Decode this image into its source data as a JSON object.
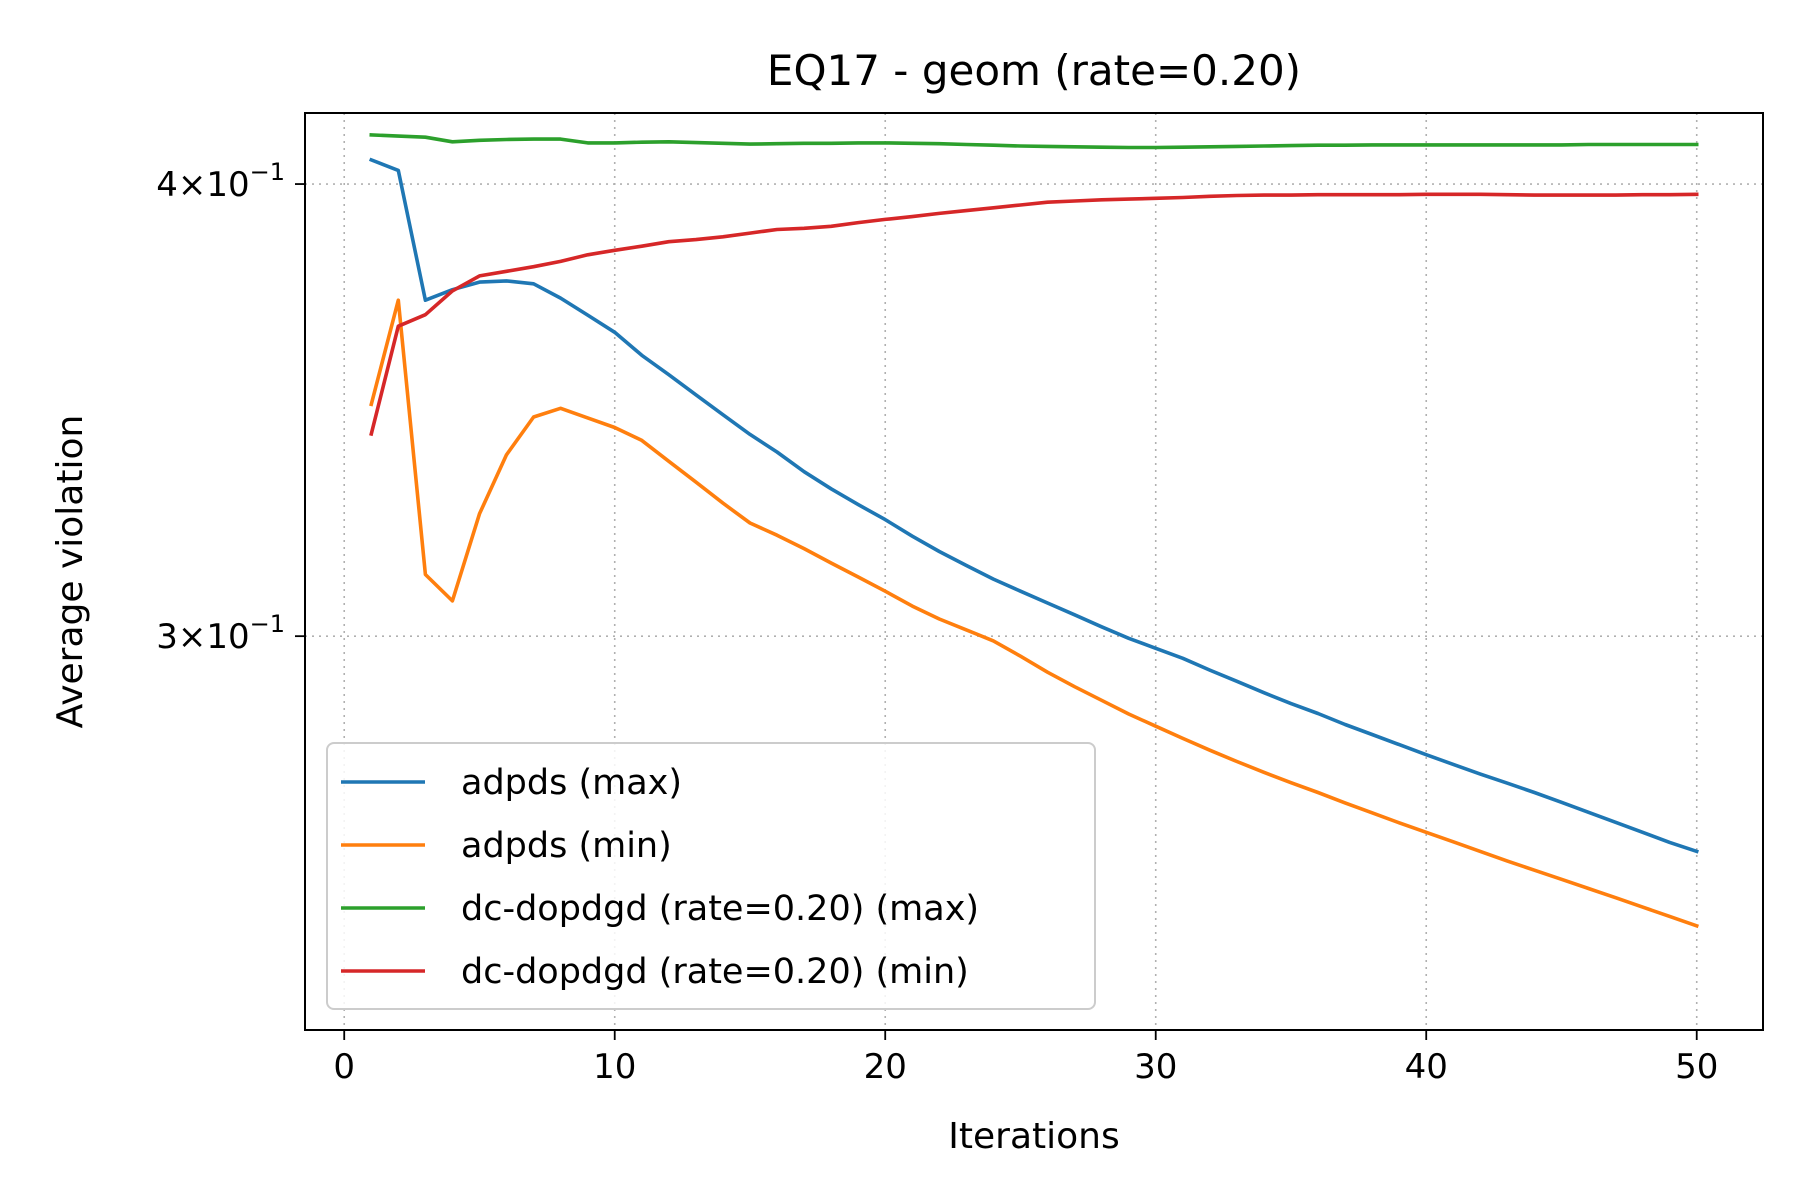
{
  "chart_data": {
    "type": "line",
    "title": "EQ17 - geom (rate=0.20)",
    "xlabel": "Iterations",
    "ylabel": "Average violation",
    "xlim": [
      -1.45,
      52.45
    ],
    "ylim": [
      0.2335,
      0.4185
    ],
    "y_scale": "log",
    "grid": true,
    "legend_position": "lower-left",
    "x_ticks": [
      0,
      10,
      20,
      30,
      40,
      50
    ],
    "x_tick_labels": [
      "0",
      "10",
      "20",
      "30",
      "40",
      "50"
    ],
    "y_ticks": [
      0.3,
      0.4
    ],
    "y_tick_labels": [
      {
        "mantissa": "3",
        "exponent": "−1"
      },
      {
        "mantissa": "4",
        "exponent": "−1"
      }
    ],
    "x": [
      1,
      2,
      3,
      4,
      5,
      6,
      7,
      8,
      9,
      10,
      11,
      12,
      13,
      14,
      15,
      16,
      17,
      18,
      19,
      20,
      21,
      22,
      23,
      24,
      25,
      26,
      27,
      28,
      29,
      30,
      31,
      32,
      33,
      34,
      35,
      36,
      37,
      38,
      39,
      40,
      41,
      42,
      43,
      44,
      45,
      46,
      47,
      48,
      49,
      50
    ],
    "series": [
      {
        "name": "adpds (max)",
        "color": "#1f77b4",
        "values": [
          0.4062,
          0.4035,
          0.3715,
          0.374,
          0.3758,
          0.3761,
          0.3754,
          0.372,
          0.368,
          0.364,
          0.3587,
          0.3543,
          0.3498,
          0.3454,
          0.3411,
          0.3373,
          0.3331,
          0.3295,
          0.3262,
          0.3231,
          0.3197,
          0.3166,
          0.3138,
          0.3111,
          0.3087,
          0.3064,
          0.3041,
          0.3018,
          0.2996,
          0.2977,
          0.2958,
          0.2936,
          0.2915,
          0.2894,
          0.2874,
          0.2856,
          0.2836,
          0.2818,
          0.28,
          0.2782,
          0.2765,
          0.2748,
          0.2732,
          0.2716,
          0.2699,
          0.2682,
          0.2665,
          0.2648,
          0.2631,
          0.2616
        ]
      },
      {
        "name": "adpds (min)",
        "color": "#ff7f0e",
        "values": [
          0.3477,
          0.3715,
          0.312,
          0.3068,
          0.3243,
          0.3367,
          0.3449,
          0.3468,
          0.3447,
          0.3426,
          0.3398,
          0.3353,
          0.3309,
          0.3265,
          0.3224,
          0.3199,
          0.3172,
          0.3143,
          0.3115,
          0.3087,
          0.3058,
          0.3033,
          0.3012,
          0.2991,
          0.2962,
          0.2932,
          0.2905,
          0.288,
          0.2855,
          0.2833,
          0.2811,
          0.279,
          0.277,
          0.2751,
          0.2733,
          0.2716,
          0.2698,
          0.2681,
          0.2664,
          0.2648,
          0.2632,
          0.2616,
          0.26,
          0.2585,
          0.257,
          0.2555,
          0.254,
          0.2525,
          0.251,
          0.2495
        ]
      },
      {
        "name": "dc-dopdgd (rate=0.20) (max)",
        "color": "#2ca02c",
        "values": [
          0.4127,
          0.4124,
          0.4121,
          0.4109,
          0.4113,
          0.4115,
          0.4116,
          0.4116,
          0.4106,
          0.4106,
          0.4108,
          0.4109,
          0.4107,
          0.4105,
          0.4103,
          0.4104,
          0.4105,
          0.4105,
          0.4106,
          0.4106,
          0.4105,
          0.4104,
          0.4102,
          0.41,
          0.4098,
          0.4097,
          0.4096,
          0.4095,
          0.4094,
          0.4094,
          0.4095,
          0.4096,
          0.4097,
          0.4098,
          0.4099,
          0.41,
          0.41,
          0.4101,
          0.4101,
          0.4101,
          0.4101,
          0.4101,
          0.4101,
          0.4101,
          0.4101,
          0.4102,
          0.4102,
          0.4102,
          0.4102,
          0.4102
        ]
      },
      {
        "name": "dc-dopdgd (rate=0.20) (min)",
        "color": "#d62728",
        "values": [
          0.3412,
          0.3654,
          0.3681,
          0.3737,
          0.3773,
          0.3784,
          0.3795,
          0.3808,
          0.3824,
          0.3835,
          0.3845,
          0.3856,
          0.3861,
          0.3868,
          0.3877,
          0.3886,
          0.3889,
          0.3894,
          0.3903,
          0.3911,
          0.3918,
          0.3926,
          0.3933,
          0.394,
          0.3947,
          0.3954,
          0.3957,
          0.396,
          0.3962,
          0.3964,
          0.3966,
          0.3969,
          0.3971,
          0.3972,
          0.3972,
          0.3973,
          0.3973,
          0.3973,
          0.3973,
          0.3974,
          0.3974,
          0.3974,
          0.3973,
          0.3972,
          0.3972,
          0.3972,
          0.3972,
          0.3973,
          0.3973,
          0.3974
        ]
      }
    ]
  }
}
